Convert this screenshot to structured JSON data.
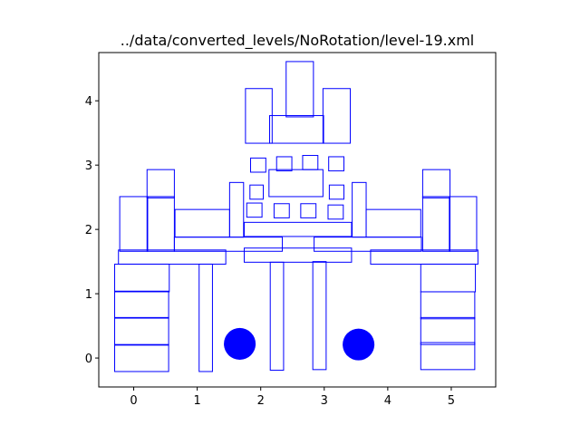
{
  "chart_data": {
    "type": "scatter",
    "title": "../data/converted_levels/NoRotation/level-19.xml",
    "xlabel": "",
    "ylabel": "",
    "xlim": [
      -0.55,
      5.7
    ],
    "ylim": [
      -0.45,
      4.75
    ],
    "grid": false,
    "x_ticks": [
      0,
      1,
      2,
      3,
      4,
      5
    ],
    "y_ticks": [
      0,
      1,
      2,
      3,
      4
    ],
    "shape_color": "#0000ff",
    "rectangles": [
      {
        "x0": 1.76,
        "x1": 2.18,
        "y0": 3.34,
        "y1": 4.19
      },
      {
        "x0": 2.4,
        "x1": 2.83,
        "y0": 3.75,
        "y1": 4.61
      },
      {
        "x0": 2.98,
        "x1": 3.41,
        "y0": 3.34,
        "y1": 4.19
      },
      {
        "x0": 2.14,
        "x1": 2.99,
        "y0": 3.34,
        "y1": 3.77
      },
      {
        "x0": 1.84,
        "x1": 2.08,
        "y0": 2.89,
        "y1": 3.11
      },
      {
        "x0": 2.25,
        "x1": 2.49,
        "y0": 2.91,
        "y1": 3.13
      },
      {
        "x0": 2.66,
        "x1": 2.9,
        "y0": 2.93,
        "y1": 3.15
      },
      {
        "x0": 3.07,
        "x1": 3.31,
        "y0": 2.91,
        "y1": 3.13
      },
      {
        "x0": 1.83,
        "x1": 2.04,
        "y0": 2.47,
        "y1": 2.69
      },
      {
        "x0": 2.13,
        "x1": 2.98,
        "y0": 2.51,
        "y1": 2.93
      },
      {
        "x0": 3.08,
        "x1": 3.31,
        "y0": 2.47,
        "y1": 2.69
      },
      {
        "x0": 1.78,
        "x1": 2.02,
        "y0": 2.19,
        "y1": 2.41
      },
      {
        "x0": 2.21,
        "x1": 2.45,
        "y0": 2.18,
        "y1": 2.4
      },
      {
        "x0": 2.63,
        "x1": 2.87,
        "y0": 2.18,
        "y1": 2.4
      },
      {
        "x0": 3.06,
        "x1": 3.3,
        "y0": 2.16,
        "y1": 2.38
      },
      {
        "x0": 1.51,
        "x1": 1.73,
        "y0": 1.88,
        "y1": 2.73
      },
      {
        "x0": 3.44,
        "x1": 3.66,
        "y0": 1.88,
        "y1": 2.73
      },
      {
        "x0": 0.21,
        "x1": 0.64,
        "y0": 2.49,
        "y1": 2.93
      },
      {
        "x0": 4.55,
        "x1": 4.98,
        "y0": 2.49,
        "y1": 2.93
      },
      {
        "x0": -0.22,
        "x1": 0.22,
        "y0": 1.66,
        "y1": 2.51
      },
      {
        "x0": 0.21,
        "x1": 0.64,
        "y0": 1.66,
        "y1": 2.51
      },
      {
        "x0": 4.55,
        "x1": 4.98,
        "y0": 1.66,
        "y1": 2.51
      },
      {
        "x0": 4.97,
        "x1": 5.4,
        "y0": 1.66,
        "y1": 2.51
      },
      {
        "x0": 0.65,
        "x1": 1.51,
        "y0": 1.88,
        "y1": 2.31
      },
      {
        "x0": 3.66,
        "x1": 4.52,
        "y0": 1.88,
        "y1": 2.31
      },
      {
        "x0": 1.74,
        "x1": 3.43,
        "y0": 1.89,
        "y1": 2.11
      },
      {
        "x0": 0.64,
        "x1": 2.34,
        "y0": 1.66,
        "y1": 1.88
      },
      {
        "x0": 2.84,
        "x1": 4.53,
        "y0": 1.66,
        "y1": 1.88
      },
      {
        "x0": -0.24,
        "x1": 1.45,
        "y0": 1.46,
        "y1": 1.68
      },
      {
        "x0": 1.74,
        "x1": 3.43,
        "y0": 1.49,
        "y1": 1.71
      },
      {
        "x0": 3.73,
        "x1": 5.42,
        "y0": 1.46,
        "y1": 1.68
      },
      {
        "x0": -0.3,
        "x1": 0.56,
        "y0": 1.03,
        "y1": 1.46
      },
      {
        "x0": 4.52,
        "x1": 5.38,
        "y0": 1.03,
        "y1": 1.46
      },
      {
        "x0": -0.3,
        "x1": 0.55,
        "y0": 0.62,
        "y1": 1.04
      },
      {
        "x0": 4.52,
        "x1": 5.37,
        "y0": 0.61,
        "y1": 1.03
      },
      {
        "x0": -0.3,
        "x1": 0.55,
        "y0": 0.2,
        "y1": 0.63
      },
      {
        "x0": 4.52,
        "x1": 5.37,
        "y0": 0.21,
        "y1": 0.63
      },
      {
        "x0": -0.3,
        "x1": 0.55,
        "y0": -0.21,
        "y1": 0.21
      },
      {
        "x0": 4.52,
        "x1": 5.37,
        "y0": -0.18,
        "y1": 0.24
      },
      {
        "x0": 1.03,
        "x1": 1.24,
        "y0": -0.21,
        "y1": 1.46
      },
      {
        "x0": 2.15,
        "x1": 2.36,
        "y0": -0.19,
        "y1": 1.49
      },
      {
        "x0": 2.82,
        "x1": 3.03,
        "y0": -0.18,
        "y1": 1.5
      }
    ],
    "circles": [
      {
        "cx": 1.67,
        "cy": 0.22,
        "r": 0.25
      },
      {
        "cx": 3.54,
        "cy": 0.21,
        "r": 0.25
      }
    ]
  }
}
